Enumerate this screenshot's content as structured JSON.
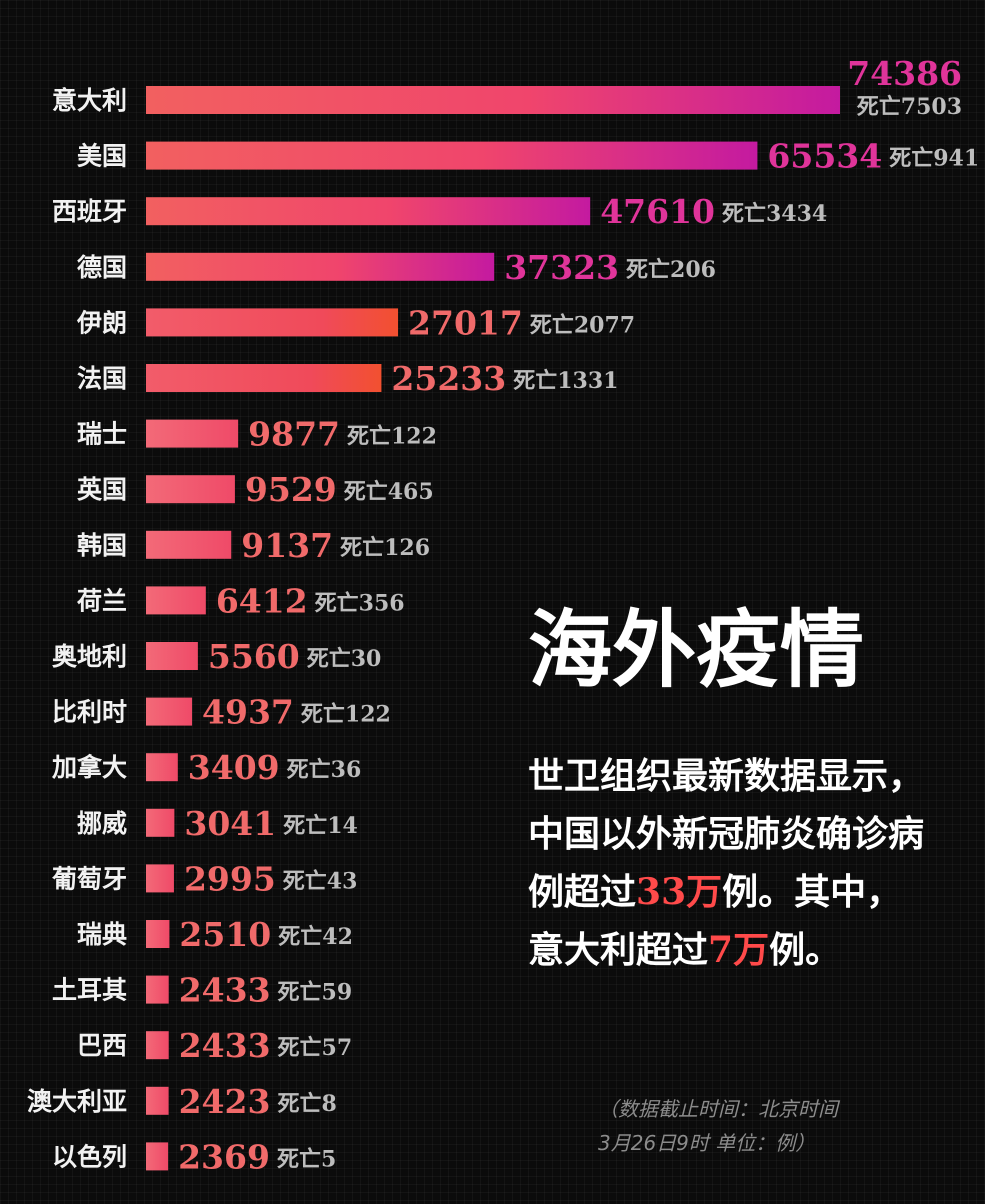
{
  "chart_data": {
    "type": "bar",
    "orientation": "horizontal",
    "categories": [
      "意大利",
      "美国",
      "西班牙",
      "德国",
      "伊朗",
      "法国",
      "瑞士",
      "英国",
      "韩国",
      "荷兰",
      "奥地利",
      "比利时",
      "加拿大",
      "挪威",
      "葡萄牙",
      "瑞典",
      "土耳其",
      "巴西",
      "澳大利亚",
      "以色列"
    ],
    "values": [
      74386,
      65534,
      47610,
      37323,
      27017,
      25233,
      9877,
      9529,
      9137,
      6412,
      5560,
      4937,
      3409,
      3041,
      2995,
      2510,
      2433,
      2433,
      2423,
      2369
    ],
    "death_prefix": "死亡",
    "deaths": [
      7503,
      941,
      3434,
      206,
      2077,
      1331,
      122,
      465,
      126,
      356,
      30,
      122,
      36,
      14,
      43,
      42,
      59,
      57,
      8,
      5
    ],
    "colors": {
      "bar_start": "#f26060",
      "bar_mid": "#f0456c",
      "bar_end": "#c41aa0",
      "value_high": "#e0349a",
      "value_low": "#f06a6a"
    }
  },
  "panel": {
    "title": "海外疫情",
    "desc_1": "世卫组织最新数据显示，中国以外新冠肺炎确诊病例超过",
    "desc_hl_1": "33万",
    "desc_2": "例。其中，意大利超过",
    "desc_hl_2": "7万",
    "desc_3": "例。"
  },
  "footnote": {
    "line1": "（数据截止时间：北京时间",
    "line2": "3月26日9时  单位：例）"
  }
}
